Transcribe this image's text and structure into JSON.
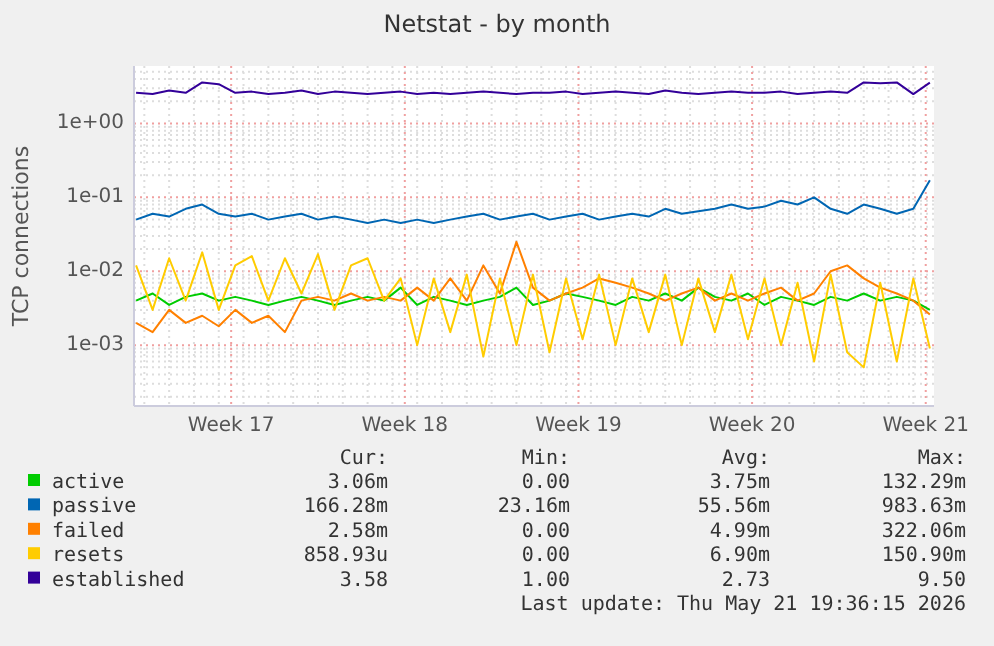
{
  "chart_data": {
    "type": "line",
    "title": "Netstat - by month",
    "ylabel": "TCP connections",
    "log": true,
    "grid": true,
    "legend": "bottom",
    "xlim": [
      "2026-04-19T14:00",
      "2026-05-21T20:00"
    ],
    "xticks": [
      {
        "value": "2026-04-23T12:00",
        "label": "Week 17"
      },
      {
        "value": "2026-04-30T12:00",
        "label": "Week 18"
      },
      {
        "value": "2026-05-07T12:00",
        "label": "Week 19"
      },
      {
        "value": "2026-05-14T12:00",
        "label": "Week 20"
      },
      {
        "value": "2026-05-21T12:00",
        "label": "Week 21"
      }
    ],
    "ylim": [
      0.00015,
      6
    ],
    "yticks": [
      {
        "value": 0.001,
        "label": "1e-03"
      },
      {
        "value": 0.01,
        "label": "1e-02"
      },
      {
        "value": 0.1,
        "label": "1e-01"
      },
      {
        "value": 1,
        "label": "1e+00"
      }
    ],
    "x": [
      "2026-04-19T16:00",
      "2026-04-20T08:00",
      "2026-04-21T00:00",
      "2026-04-21T16:00",
      "2026-04-22T08:00",
      "2026-04-23T00:00",
      "2026-04-23T16:00",
      "2026-04-24T08:00",
      "2026-04-25T00:00",
      "2026-04-25T16:00",
      "2026-04-26T08:00",
      "2026-04-27T00:00",
      "2026-04-27T16:00",
      "2026-04-28T08:00",
      "2026-04-29T00:00",
      "2026-04-29T16:00",
      "2026-04-30T08:00",
      "2026-05-01T00:00",
      "2026-05-01T16:00",
      "2026-05-02T08:00",
      "2026-05-03T00:00",
      "2026-05-03T16:00",
      "2026-05-04T08:00",
      "2026-05-05T00:00",
      "2026-05-05T16:00",
      "2026-05-06T08:00",
      "2026-05-07T00:00",
      "2026-05-07T16:00",
      "2026-05-08T08:00",
      "2026-05-09T00:00",
      "2026-05-09T16:00",
      "2026-05-10T08:00",
      "2026-05-11T00:00",
      "2026-05-11T16:00",
      "2026-05-12T08:00",
      "2026-05-13T00:00",
      "2026-05-13T16:00",
      "2026-05-14T08:00",
      "2026-05-15T00:00",
      "2026-05-15T16:00",
      "2026-05-16T08:00",
      "2026-05-17T00:00",
      "2026-05-17T16:00",
      "2026-05-18T08:00",
      "2026-05-19T00:00",
      "2026-05-19T16:00",
      "2026-05-20T08:00",
      "2026-05-21T00:00",
      "2026-05-21T16:00"
    ],
    "series": [
      {
        "name": "active",
        "color": "#00cc00",
        "values": [
          0.004,
          0.005,
          0.0035,
          0.0045,
          0.005,
          0.004,
          0.0045,
          0.004,
          0.0035,
          0.004,
          0.0045,
          0.004,
          0.0035,
          0.004,
          0.0045,
          0.004,
          0.006,
          0.0035,
          0.0045,
          0.004,
          0.0035,
          0.004,
          0.0045,
          0.006,
          0.0035,
          0.004,
          0.005,
          0.0045,
          0.004,
          0.0035,
          0.0045,
          0.004,
          0.005,
          0.004,
          0.006,
          0.0045,
          0.004,
          0.005,
          0.0035,
          0.0045,
          0.004,
          0.0035,
          0.0045,
          0.004,
          0.005,
          0.004,
          0.0045,
          0.004,
          0.003
        ]
      },
      {
        "name": "passive",
        "color": "#0066b3",
        "values": [
          0.05,
          0.06,
          0.055,
          0.07,
          0.08,
          0.06,
          0.055,
          0.06,
          0.05,
          0.055,
          0.06,
          0.05,
          0.055,
          0.05,
          0.045,
          0.05,
          0.045,
          0.05,
          0.045,
          0.05,
          0.055,
          0.06,
          0.05,
          0.055,
          0.06,
          0.05,
          0.055,
          0.06,
          0.05,
          0.055,
          0.06,
          0.055,
          0.07,
          0.06,
          0.065,
          0.07,
          0.08,
          0.07,
          0.075,
          0.09,
          0.08,
          0.1,
          0.07,
          0.06,
          0.08,
          0.07,
          0.06,
          0.07,
          0.17
        ]
      },
      {
        "name": "failed",
        "color": "#ff8000",
        "values": [
          0.002,
          0.0015,
          0.003,
          0.002,
          0.0025,
          0.0018,
          0.003,
          0.002,
          0.0025,
          0.0015,
          0.004,
          0.0045,
          0.004,
          0.005,
          0.004,
          0.0045,
          0.004,
          0.006,
          0.004,
          0.008,
          0.004,
          0.012,
          0.005,
          0.025,
          0.006,
          0.004,
          0.005,
          0.006,
          0.008,
          0.007,
          0.006,
          0.005,
          0.004,
          0.005,
          0.006,
          0.004,
          0.005,
          0.004,
          0.005,
          0.006,
          0.004,
          0.005,
          0.01,
          0.012,
          0.008,
          0.006,
          0.005,
          0.004,
          0.0026
        ]
      },
      {
        "name": "resets",
        "color": "#ffcc00",
        "values": [
          0.012,
          0.003,
          0.015,
          0.004,
          0.018,
          0.003,
          0.012,
          0.016,
          0.004,
          0.015,
          0.005,
          0.017,
          0.003,
          0.012,
          0.015,
          0.004,
          0.008,
          0.001,
          0.008,
          0.0015,
          0.009,
          0.0007,
          0.008,
          0.001,
          0.009,
          0.0008,
          0.008,
          0.0012,
          0.009,
          0.001,
          0.008,
          0.0015,
          0.009,
          0.001,
          0.008,
          0.0015,
          0.009,
          0.0012,
          0.008,
          0.001,
          0.007,
          0.0006,
          0.009,
          0.0008,
          0.0005,
          0.007,
          0.0006,
          0.008,
          0.0009
        ]
      },
      {
        "name": "established",
        "color": "#330099",
        "values": [
          2.6,
          2.5,
          2.8,
          2.6,
          3.6,
          3.4,
          2.6,
          2.7,
          2.5,
          2.6,
          2.8,
          2.5,
          2.7,
          2.6,
          2.5,
          2.6,
          2.7,
          2.5,
          2.6,
          2.5,
          2.6,
          2.7,
          2.6,
          2.5,
          2.6,
          2.6,
          2.7,
          2.5,
          2.6,
          2.7,
          2.6,
          2.5,
          2.8,
          2.6,
          2.5,
          2.6,
          2.7,
          2.6,
          2.6,
          2.7,
          2.5,
          2.6,
          2.7,
          2.6,
          3.6,
          3.5,
          3.6,
          2.5,
          3.58
        ]
      }
    ],
    "annotations": [
      "Cur:",
      "Min:",
      "Avg:",
      "Max:",
      "3.06m",
      "0.00",
      "3.75m",
      "132.29m",
      "166.28m",
      "23.16m",
      "55.56m",
      "983.63m",
      "2.58m",
      "0.00",
      "4.99m",
      "322.06m",
      "858.93u",
      "0.00",
      "6.90m",
      "150.90m",
      "3.58",
      "1.00",
      "2.73",
      "9.50",
      "Last update: Thu May 21 19:36:15 2026"
    ]
  }
}
